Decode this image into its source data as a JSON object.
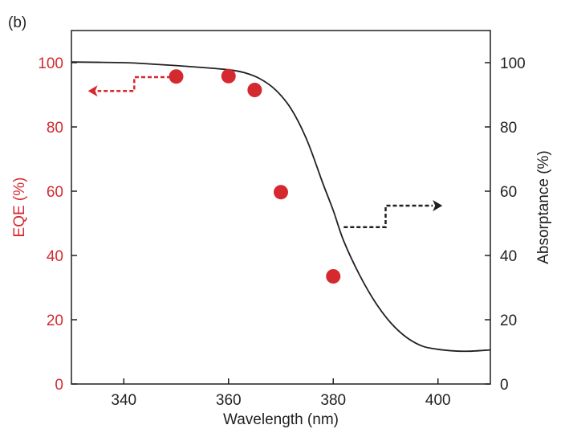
{
  "chart_data": {
    "type": "scatter",
    "panel_label": "(b)",
    "xlabel": "Wavelength (nm)",
    "ylabel_left": "EQE (%)",
    "ylabel_right": "Absorptance (%)",
    "xlim": [
      330,
      410
    ],
    "ylim_left": [
      0,
      110
    ],
    "ylim_right": [
      0,
      110
    ],
    "x_ticks": [
      340,
      360,
      380,
      400
    ],
    "y_ticks_left": [
      0,
      20,
      40,
      60,
      80,
      100
    ],
    "y_ticks_right": [
      0,
      20,
      40,
      60,
      80,
      100
    ],
    "grid": false,
    "colors": {
      "eqe": "#d42a2f",
      "absorptance": "#231f20",
      "axis": "#231f20"
    },
    "series": [
      {
        "kind": "scatter",
        "axis": "left",
        "color": "#d42a2f",
        "x": [
          350,
          360,
          365,
          370,
          380
        ],
        "y": [
          95.7,
          95.8,
          91.5,
          59.7,
          33.5
        ]
      },
      {
        "kind": "line",
        "axis": "right",
        "color": "#231f20",
        "x": [
          330,
          340,
          345,
          350,
          355,
          360,
          363,
          366,
          369,
          372,
          375,
          378,
          380,
          382,
          385,
          388,
          391,
          394,
          397,
          400,
          403,
          406,
          410
        ],
        "y": [
          100.2,
          100.0,
          99.6,
          99.1,
          98.5,
          97.8,
          96.9,
          95.0,
          91.5,
          85.5,
          75.8,
          62.5,
          54.0,
          44.5,
          34.0,
          25.5,
          19.0,
          14.5,
          11.8,
          10.8,
          10.3,
          10.2,
          10.6
        ]
      }
    ],
    "annotations": [
      {
        "name": "eqe-left-arrow",
        "color": "#d42a2f",
        "direction": "left",
        "axis": "left",
        "points": [
          [
            349,
            95.5
          ],
          [
            342,
            95.5
          ],
          [
            342,
            91.2
          ],
          [
            335,
            91.2
          ]
        ]
      },
      {
        "name": "absorptance-right-arrow",
        "color": "#231f20",
        "direction": "right",
        "axis": "right",
        "points": [
          [
            382,
            48.8
          ],
          [
            390,
            48.8
          ],
          [
            390,
            55.5
          ],
          [
            399,
            55.5
          ]
        ]
      }
    ]
  }
}
